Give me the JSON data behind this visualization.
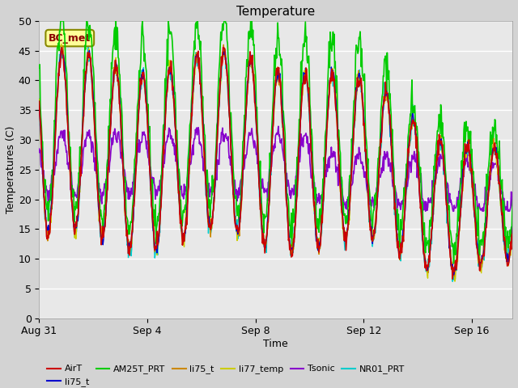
{
  "title": "Temperature",
  "xlabel": "Time",
  "ylabel": "Temperatures (C)",
  "annotation": "BC_met",
  "ylim": [
    0,
    50
  ],
  "yticks": [
    0,
    5,
    10,
    15,
    20,
    25,
    30,
    35,
    40,
    45,
    50
  ],
  "xtick_labels": [
    "Aug 31",
    "Sep 4",
    "Sep 8",
    "Sep 12",
    "Sep 16"
  ],
  "xtick_positions": [
    0,
    4,
    8,
    12,
    16
  ],
  "plot_bg_color": "#e8e8e8",
  "fig_bg_color": "#d3d3d3",
  "legend": [
    {
      "label": "AirT",
      "color": "#cc0000"
    },
    {
      "label": "li75_t",
      "color": "#0000cc"
    },
    {
      "label": "AM25T_PRT",
      "color": "#00cc00"
    },
    {
      "label": "li75_t",
      "color": "#cc8800"
    },
    {
      "label": "li77_temp",
      "color": "#cccc00"
    },
    {
      "label": "Tsonic",
      "color": "#8800cc"
    },
    {
      "label": "NR01_PRT",
      "color": "#00cccc"
    }
  ],
  "seed": 42,
  "n_days": 18,
  "samples_per_day": 48
}
